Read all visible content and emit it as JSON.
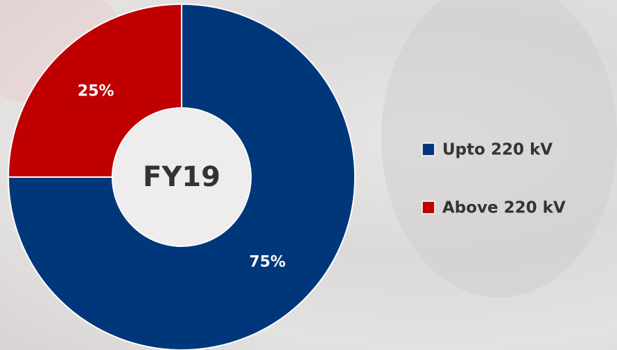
{
  "chart_data": {
    "type": "donut",
    "center_text": "FY19",
    "categories": [
      "Upto 220 kV",
      "Above 220 kV"
    ],
    "values": [
      75,
      25
    ],
    "value_labels": [
      "75%",
      "25%"
    ],
    "colors": [
      "#00377a",
      "#c00000"
    ]
  }
}
